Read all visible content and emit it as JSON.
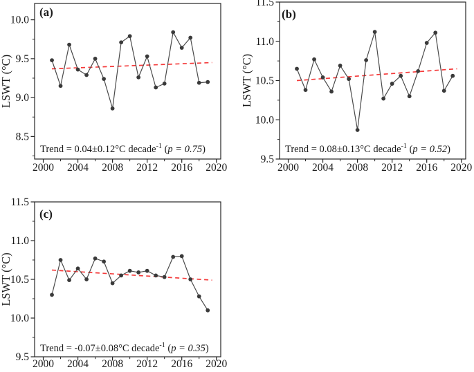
{
  "figure": {
    "background": "#ffffff"
  },
  "colors": {
    "series_line": "#4a4a4a",
    "marker_fill": "#3a3a3a",
    "trend_line": "#f43b3b",
    "axis": "#262626",
    "text": "#1a1a1a"
  },
  "chart_data": [
    {
      "type": "line",
      "panel_label": "(a)",
      "ylabel": "LSWT (°C)",
      "xlabel": "",
      "x": [
        2001,
        2002,
        2003,
        2004,
        2005,
        2006,
        2007,
        2008,
        2009,
        2010,
        2011,
        2012,
        2013,
        2014,
        2015,
        2016,
        2017,
        2018,
        2019
      ],
      "values": [
        9.48,
        9.15,
        9.68,
        9.36,
        9.29,
        9.5,
        9.24,
        8.86,
        9.71,
        9.79,
        9.26,
        9.53,
        9.13,
        9.18,
        9.84,
        9.64,
        9.77,
        9.19,
        9.2
      ],
      "trend": {
        "x": [
          2001,
          2019.5
        ],
        "y": [
          9.37,
          9.45
        ]
      },
      "annotation_segments": [
        {
          "text": "Trend = 0.04±0.12°C decade"
        },
        {
          "text": "-1",
          "style": "sup"
        },
        {
          "text": " ("
        },
        {
          "text": "p = 0.75",
          "style": "italic"
        },
        {
          "text": ")"
        }
      ],
      "xlim": [
        1999,
        2020.5
      ],
      "ylim": [
        8.21,
        10.21
      ],
      "xticks": [
        2000,
        2004,
        2008,
        2012,
        2016,
        2020
      ],
      "minor_xticks": [
        2002,
        2006,
        2010,
        2014,
        2018
      ],
      "yticks": [
        8.5,
        9.0,
        9.5,
        10.0
      ],
      "ytick_labels": [
        "8.5",
        "9.0",
        "9.5",
        "10.0"
      ],
      "minor_yticks": [
        8.25,
        8.75,
        9.25,
        9.75
      ],
      "grid": false,
      "legend": "none"
    },
    {
      "type": "line",
      "panel_label": "(b)",
      "ylabel": "LSWT (°C)",
      "xlabel": "",
      "x": [
        2001,
        2002,
        2003,
        2004,
        2005,
        2006,
        2007,
        2008,
        2009,
        2010,
        2011,
        2012,
        2013,
        2014,
        2015,
        2016,
        2017,
        2018,
        2019
      ],
      "values": [
        10.65,
        10.38,
        10.77,
        10.54,
        10.36,
        10.69,
        10.52,
        9.87,
        10.76,
        11.12,
        10.27,
        10.46,
        10.56,
        10.3,
        10.62,
        10.98,
        11.11,
        10.37,
        10.56
      ],
      "trend": {
        "x": [
          2001,
          2019.5
        ],
        "y": [
          10.5,
          10.65
        ]
      },
      "annotation_segments": [
        {
          "text": "Trend = 0.08±0.13°C decade"
        },
        {
          "text": "-1",
          "style": "sup"
        },
        {
          "text": " ("
        },
        {
          "text": "p = 0.52",
          "style": "italic"
        },
        {
          "text": ")"
        }
      ],
      "xlim": [
        1999,
        2020.5
      ],
      "ylim": [
        9.5,
        11.5
      ],
      "xticks": [
        2000,
        2004,
        2008,
        2012,
        2016,
        2020
      ],
      "minor_xticks": [
        2002,
        2006,
        2010,
        2014,
        2018
      ],
      "yticks": [
        9.5,
        10.0,
        10.5,
        11.0,
        11.5
      ],
      "ytick_labels": [
        "9.5",
        "10.0",
        "10.5",
        "11.0",
        "11.5"
      ],
      "minor_yticks": [
        9.75,
        10.25,
        10.75,
        11.25
      ],
      "grid": false,
      "legend": "none"
    },
    {
      "type": "line",
      "panel_label": "(c)",
      "ylabel": "LSWT (°C)",
      "xlabel": "",
      "x": [
        2001,
        2002,
        2003,
        2004,
        2005,
        2006,
        2007,
        2008,
        2009,
        2010,
        2011,
        2012,
        2013,
        2014,
        2015,
        2016,
        2017,
        2018,
        2019
      ],
      "values": [
        10.3,
        10.75,
        10.49,
        10.64,
        10.5,
        10.77,
        10.73,
        10.45,
        10.55,
        10.61,
        10.59,
        10.61,
        10.55,
        10.53,
        10.79,
        10.8,
        10.5,
        10.28,
        10.1
      ],
      "trend": {
        "x": [
          2001,
          2019.5
        ],
        "y": [
          10.62,
          10.49
        ]
      },
      "annotation_segments": [
        {
          "text": "Trend = -0.07±0.08°C decade"
        },
        {
          "text": "-1",
          "style": "sup"
        },
        {
          "text": " ("
        },
        {
          "text": "p = 0.35",
          "style": "italic"
        },
        {
          "text": ")"
        }
      ],
      "xlim": [
        1999,
        2020.5
      ],
      "ylim": [
        9.5,
        11.5
      ],
      "xticks": [
        2000,
        2004,
        2008,
        2012,
        2016,
        2020
      ],
      "minor_xticks": [
        2002,
        2006,
        2010,
        2014,
        2018
      ],
      "yticks": [
        9.5,
        10.0,
        10.5,
        11.0,
        11.5
      ],
      "ytick_labels": [
        "9.5",
        "10.0",
        "10.5",
        "11.0",
        "11.5"
      ],
      "minor_yticks": [
        9.75,
        10.25,
        10.75,
        11.25
      ],
      "grid": false,
      "legend": "none"
    }
  ]
}
